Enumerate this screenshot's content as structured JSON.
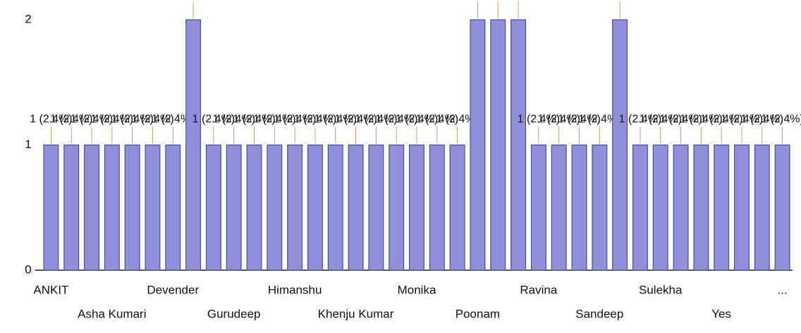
{
  "chart_data": {
    "type": "bar",
    "categories": [
      "ANKIT",
      null,
      null,
      "Asha Kumari",
      null,
      null,
      "Devender",
      null,
      null,
      "Gurudeep",
      null,
      null,
      "Himanshu",
      null,
      null,
      "Khenju Kumar",
      null,
      null,
      "Monika",
      null,
      null,
      "Poonam",
      null,
      null,
      "Ravina",
      null,
      null,
      "Sandeep",
      null,
      null,
      "Sulekha",
      null,
      null,
      "Yes",
      null,
      null,
      "..."
    ],
    "values": [
      1,
      1,
      1,
      1,
      1,
      1,
      1,
      2,
      1,
      1,
      1,
      1,
      1,
      1,
      1,
      1,
      1,
      1,
      1,
      1,
      1,
      2,
      2,
      2,
      1,
      1,
      1,
      1,
      2,
      1,
      1,
      1,
      1,
      1,
      1,
      1,
      1
    ],
    "value_labels": [
      "1 (2.4%)",
      "1 (2.4%)",
      "1 (2.4%)",
      "1 (2.4%)",
      "1 (2.4%)",
      "1 (2.4%)",
      "1 (2.4%)",
      "2 (4.8%)",
      "1 (2.4%)",
      "1 (2.4%)",
      "1 (2.4%)",
      "1 (2.4%)",
      "1 (2.4%)",
      "1 (2.4%)",
      "1 (2.4%)",
      "1 (2.4%)",
      "1 (2.4%)",
      "1 (2.4%)",
      "1 (2.4%)",
      "1 (2.4%)",
      "1 (2.4%)",
      "2 (4.8%)",
      "2 (4.8%)",
      "2 (4.8%)",
      "1 (2.4%)",
      "1 (2.4%)",
      "1 (2.4%)",
      "1 (2.4%)",
      "2 (4.8%)",
      "1 (2.4%)",
      "1 (2.4%)",
      "1 (2.4%)",
      "1 (2.4%)",
      "1 (2.4%)",
      "1 (2.4%)",
      "1 (2.4%)",
      "1 (2.4%)"
    ],
    "color": "#8f90dc",
    "ylim": [
      0,
      2
    ],
    "yticks": [
      0,
      1,
      2
    ],
    "grid": false
  }
}
